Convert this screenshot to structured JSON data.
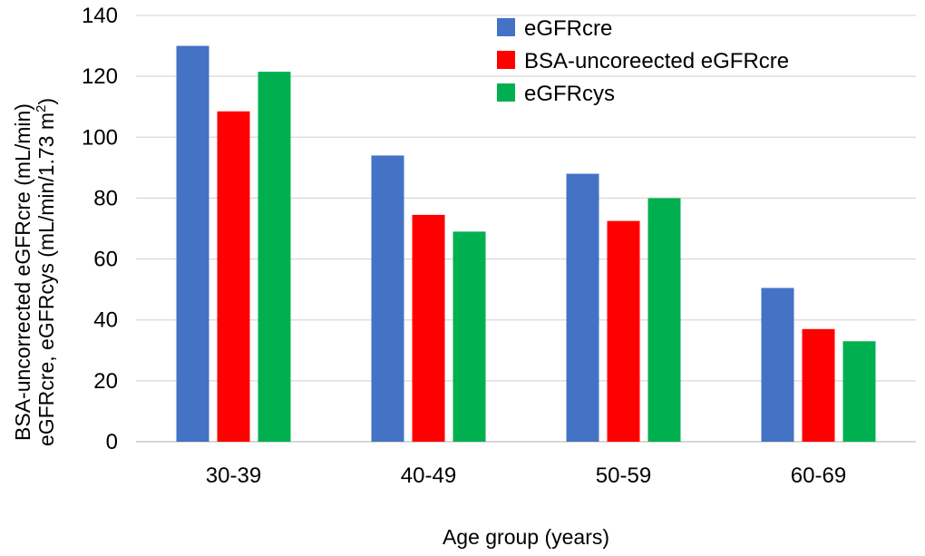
{
  "chart_data": {
    "type": "bar",
    "xlabel": "Age group (years)",
    "ylabel_line1": "BSA-uncorrected eGFRcre (mL/min)",
    "ylabel_line2_prefix": "eGFRcre, eGFRcys (mL/min/1.73 m",
    "ylabel_line2_sup": "2",
    "ylabel_line2_suffix": ")",
    "categories": [
      "30-39",
      "40-49",
      "50-59",
      "60-69"
    ],
    "ylim": [
      0,
      140
    ],
    "yticks": [
      "0",
      "20",
      "40",
      "60",
      "80",
      "100",
      "120",
      "140"
    ],
    "grid": true,
    "legend_position": "top-right",
    "series": [
      {
        "name": "eGFRcre",
        "color": "#4472C4",
        "values": [
          130,
          94,
          88,
          50.5
        ]
      },
      {
        "name": "BSA-uncoreected eGFRcre",
        "color": "#FF0000",
        "values": [
          108.5,
          74.5,
          72.5,
          37
        ]
      },
      {
        "name": "eGFRcys",
        "color": "#00B050",
        "values": [
          121.5,
          69,
          80,
          33
        ]
      }
    ]
  }
}
